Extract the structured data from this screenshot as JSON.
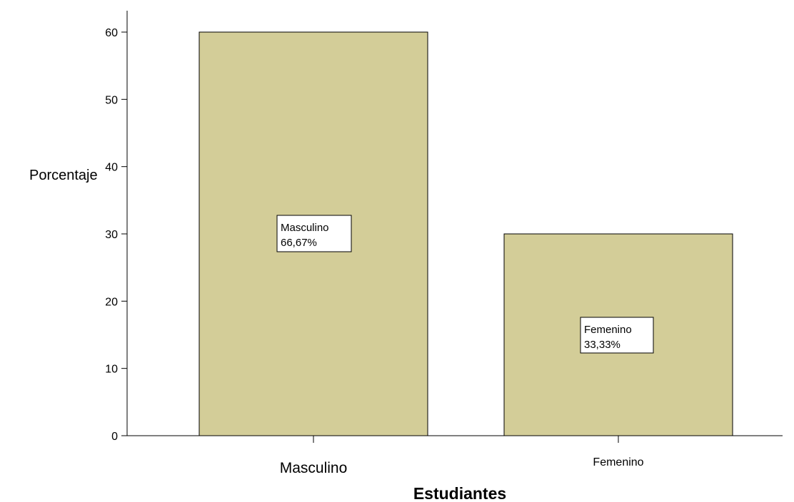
{
  "chart_data": {
    "type": "bar",
    "categories": [
      "Masculino",
      "Femenino"
    ],
    "values": [
      60,
      30
    ],
    "data_labels": [
      {
        "category": "Masculino",
        "percent": "66,67%"
      },
      {
        "category": "Femenino",
        "percent": "33,33%"
      }
    ],
    "title": "",
    "xlabel": "Estudiantes",
    "ylabel": "Porcentaje",
    "ylim": [
      0,
      60
    ],
    "yticks": [
      "0",
      "10",
      "20",
      "30",
      "40",
      "50",
      "60"
    ],
    "grid": false,
    "legend": "none",
    "colors": {
      "bar_fill": "#d3cd98",
      "bar_stroke": "#000000",
      "axis": "#000000",
      "label_box_fill": "#ffffff"
    }
  }
}
